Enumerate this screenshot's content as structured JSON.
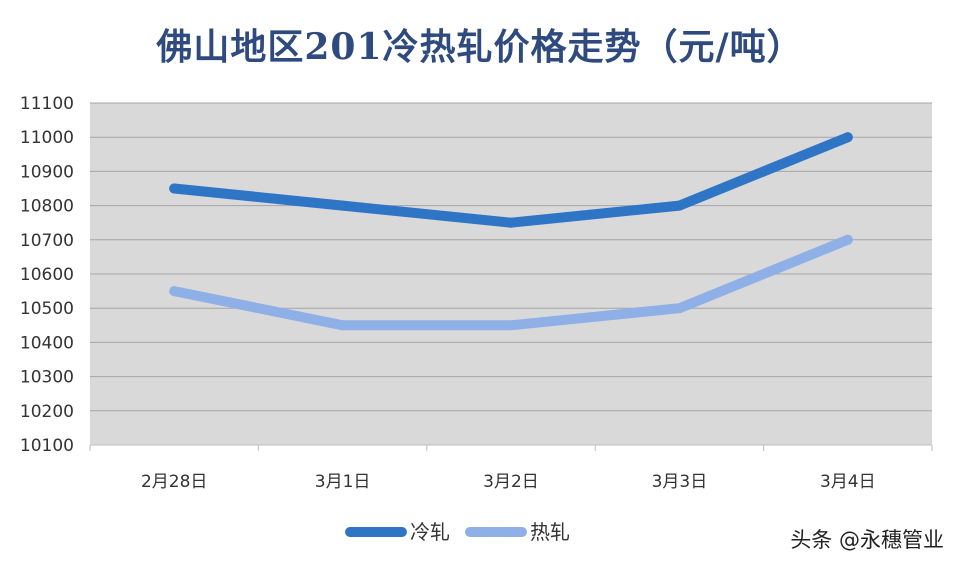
{
  "chart_data": {
    "type": "line",
    "title": "佛山地区201冷热轧价格走势（元/吨）",
    "categories": [
      "2月28日",
      "3月1日",
      "3月2日",
      "3月3日",
      "3月4日"
    ],
    "series": [
      {
        "name": "冷轧",
        "values": [
          10850,
          10800,
          10750,
          10800,
          11000
        ],
        "color": "#2e75c6"
      },
      {
        "name": "热轧",
        "values": [
          10550,
          10450,
          10450,
          10500,
          10700
        ],
        "color": "#8fb0e6"
      }
    ],
    "ylim": [
      10100,
      11100
    ],
    "yticks": [
      11100,
      11000,
      10900,
      10800,
      10700,
      10600,
      10500,
      10400,
      10300,
      10200,
      10100
    ],
    "grid": true,
    "legend": "bottom",
    "plot_background": "#d9d9d9"
  },
  "watermark": "头条 @永穗管业"
}
